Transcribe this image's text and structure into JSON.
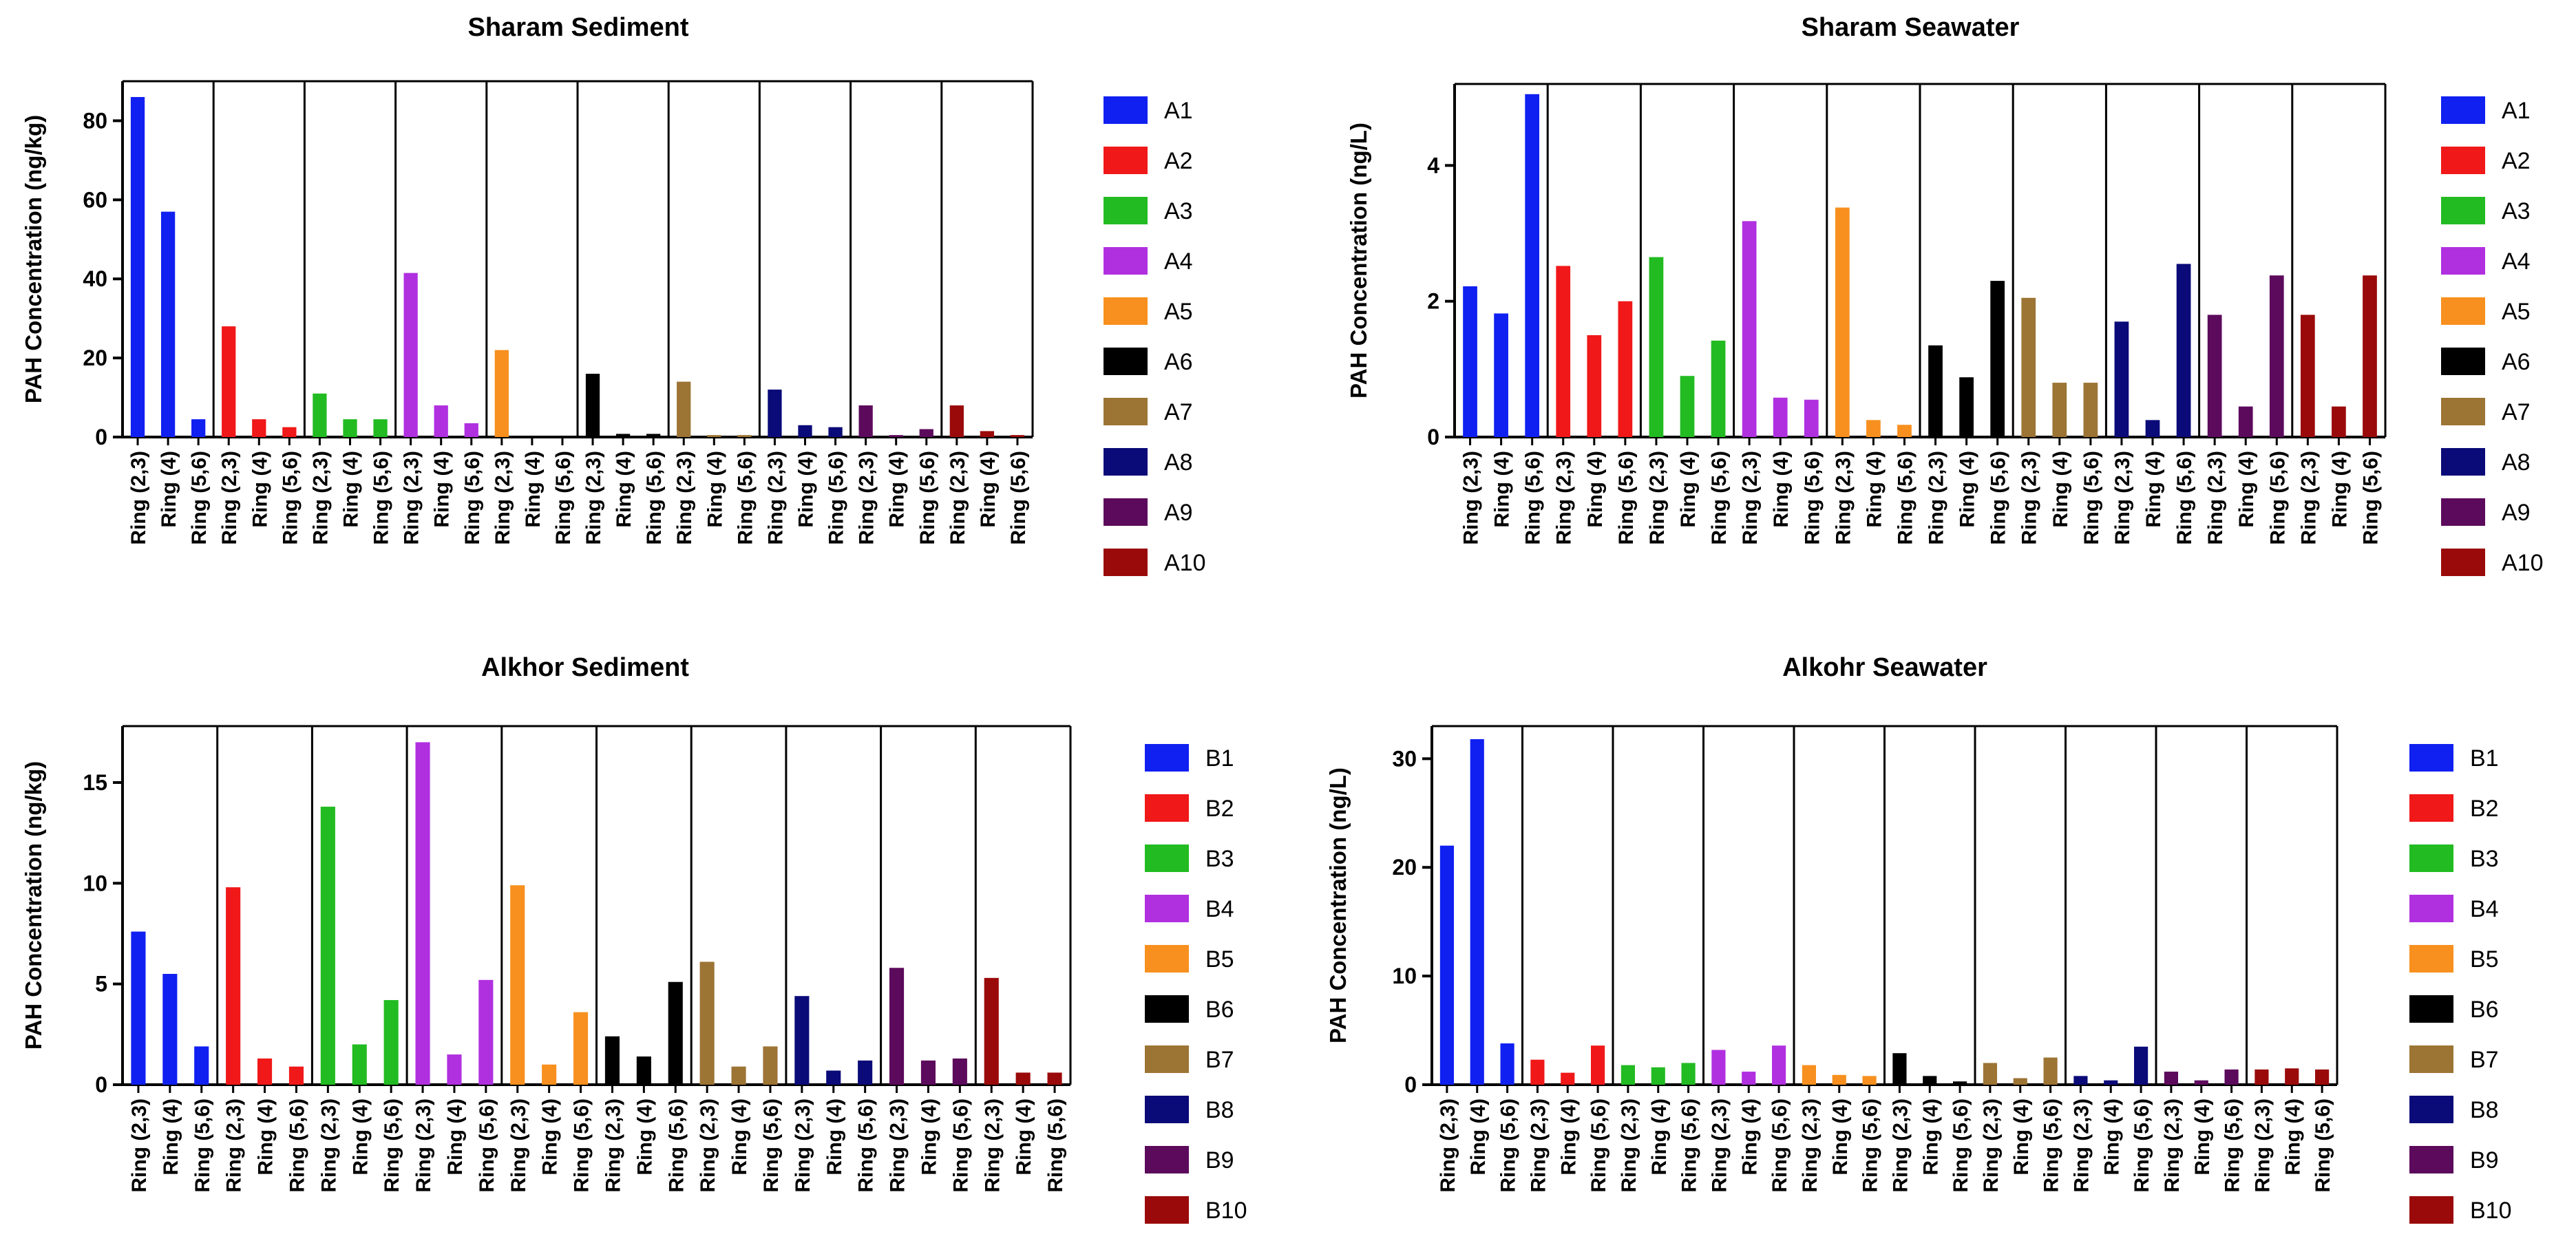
{
  "colors": {
    "A1": "#1020f0",
    "A2": "#f01818",
    "A3": "#22bb22",
    "A4": "#b030e0",
    "A5": "#f7901e",
    "A6": "#000000",
    "A7": "#9c7434",
    "A8": "#0a0a78",
    "A9": "#5c0a5c",
    "A10": "#9a0a0a"
  },
  "chart_data": [
    {
      "type": "bar",
      "title": "Sharam Sediment",
      "ylabel": "PAH Concentration (ng/kg)",
      "xlabel": "",
      "ylim": [
        0,
        90
      ],
      "yticks": [
        0,
        20,
        40,
        60,
        80
      ],
      "categories": [
        "Ring (2,3)",
        "Ring (4)",
        "Ring (5,6)"
      ],
      "legend_position": "right",
      "series": [
        {
          "name": "A1",
          "values": [
            86,
            57,
            4.5
          ]
        },
        {
          "name": "A2",
          "values": [
            28,
            4.5,
            2.5
          ]
        },
        {
          "name": "A3",
          "values": [
            11,
            4.5,
            4.5
          ]
        },
        {
          "name": "A4",
          "values": [
            41.5,
            8,
            3.5
          ]
        },
        {
          "name": "A5",
          "values": [
            22,
            0,
            0
          ]
        },
        {
          "name": "A6",
          "values": [
            16,
            0.8,
            0.8
          ]
        },
        {
          "name": "A7",
          "values": [
            14,
            0.5,
            0.5
          ]
        },
        {
          "name": "A8",
          "values": [
            12,
            3,
            2.5
          ]
        },
        {
          "name": "A9",
          "values": [
            8,
            0.5,
            2
          ]
        },
        {
          "name": "A10",
          "values": [
            8,
            1.5,
            0.5
          ]
        }
      ]
    },
    {
      "type": "bar",
      "title": "Sharam Seawater",
      "ylabel": "PAH Concentration (ng/L)",
      "xlabel": "",
      "ylim": [
        0,
        5.2
      ],
      "yticks": [
        0,
        2,
        4
      ],
      "categories": [
        "Ring (2,3)",
        "Ring (4)",
        "Ring (5,6)"
      ],
      "legend_position": "right",
      "series": [
        {
          "name": "A1",
          "values": [
            2.22,
            1.82,
            5.05
          ]
        },
        {
          "name": "A2",
          "values": [
            2.52,
            1.5,
            2.0
          ]
        },
        {
          "name": "A3",
          "values": [
            2.65,
            0.9,
            1.42
          ]
        },
        {
          "name": "A4",
          "values": [
            3.18,
            0.58,
            0.55
          ]
        },
        {
          "name": "A5",
          "values": [
            3.38,
            0.25,
            0.18
          ]
        },
        {
          "name": "A6",
          "values": [
            1.35,
            0.88,
            2.3
          ]
        },
        {
          "name": "A7",
          "values": [
            2.05,
            0.8,
            0.8
          ]
        },
        {
          "name": "A8",
          "values": [
            1.7,
            0.25,
            2.55
          ]
        },
        {
          "name": "A9",
          "values": [
            1.8,
            0.45,
            2.38
          ]
        },
        {
          "name": "A10",
          "values": [
            1.8,
            0.45,
            2.38
          ]
        }
      ]
    },
    {
      "type": "bar",
      "title": "Alkhor Sediment",
      "ylabel": "PAH Concentration (ng/kg)",
      "xlabel": "",
      "ylim": [
        0,
        17.8
      ],
      "yticks": [
        0,
        5,
        10,
        15
      ],
      "categories": [
        "Ring (2,3)",
        "Ring (4)",
        "Ring (5,6)"
      ],
      "legend_position": "right",
      "series": [
        {
          "name": "B1",
          "values": [
            7.6,
            5.5,
            1.9
          ]
        },
        {
          "name": "B2",
          "values": [
            9.8,
            1.3,
            0.9
          ]
        },
        {
          "name": "B3",
          "values": [
            13.8,
            2.0,
            4.2
          ]
        },
        {
          "name": "B4",
          "values": [
            17.0,
            1.5,
            5.2
          ]
        },
        {
          "name": "B5",
          "values": [
            9.9,
            1.0,
            3.6
          ]
        },
        {
          "name": "B6",
          "values": [
            2.4,
            1.4,
            5.1
          ]
        },
        {
          "name": "B7",
          "values": [
            6.1,
            0.9,
            1.9
          ]
        },
        {
          "name": "B8",
          "values": [
            4.4,
            0.7,
            1.2
          ]
        },
        {
          "name": "B9",
          "values": [
            5.8,
            1.2,
            1.3
          ]
        },
        {
          "name": "B10",
          "values": [
            5.3,
            0.6,
            0.6
          ]
        }
      ]
    },
    {
      "type": "bar",
      "title": "Alkohr Seawater",
      "ylabel": "PAH Concentration (ng/L)",
      "xlabel": "",
      "ylim": [
        0,
        33
      ],
      "yticks": [
        0,
        10,
        20,
        30
      ],
      "categories": [
        "Ring (2,3)",
        "Ring (4)",
        "Ring (5,6)"
      ],
      "legend_position": "right",
      "series": [
        {
          "name": "B1",
          "values": [
            22.0,
            31.8,
            3.8
          ]
        },
        {
          "name": "B2",
          "values": [
            2.3,
            1.1,
            3.6
          ]
        },
        {
          "name": "B3",
          "values": [
            1.8,
            1.6,
            2.0
          ]
        },
        {
          "name": "B4",
          "values": [
            3.2,
            1.2,
            3.6
          ]
        },
        {
          "name": "B5",
          "values": [
            1.8,
            0.9,
            0.8
          ]
        },
        {
          "name": "B6",
          "values": [
            2.9,
            0.8,
            0.3
          ]
        },
        {
          "name": "B7",
          "values": [
            2.0,
            0.6,
            2.5
          ]
        },
        {
          "name": "B8",
          "values": [
            0.8,
            0.4,
            3.5
          ]
        },
        {
          "name": "B9",
          "values": [
            1.2,
            0.4,
            1.4
          ]
        },
        {
          "name": "B10",
          "values": [
            1.4,
            1.5,
            1.4
          ]
        }
      ]
    }
  ]
}
